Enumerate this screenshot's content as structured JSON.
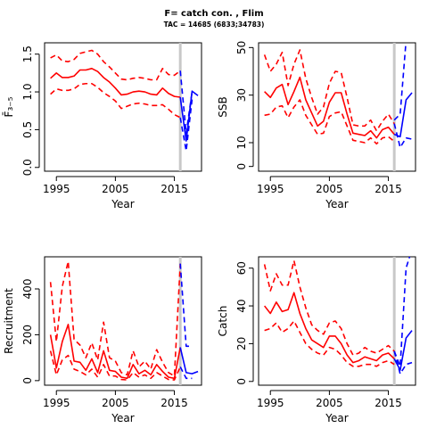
{
  "figure": {
    "title": "F= catch con. , Flim",
    "subtitle": "TAC = 14685 (6833;34783)"
  },
  "chart_data": [
    {
      "type": "line",
      "id": "f",
      "xlabel": "Year",
      "ylabel": "F̄₃₋₅",
      "xlim": [
        1993,
        2019.6
      ],
      "ylim": [
        -0.05,
        1.65
      ],
      "xticks": [
        1995,
        2005,
        2015
      ],
      "yticks": [
        0.0,
        0.5,
        1.0,
        1.5
      ],
      "ytick_labels": [
        "0.0",
        "0.5",
        "1.0",
        "1.5"
      ],
      "vline_x": 2016,
      "colors": {
        "history": "#ff0000",
        "forecast": "#0000ff",
        "vline": "#c8c8c8"
      },
      "history": {
        "x": [
          1994,
          1995,
          1996,
          1997,
          1998,
          1999,
          2000,
          2001,
          2002,
          2003,
          2004,
          2005,
          2006,
          2007,
          2008,
          2009,
          2010,
          2011,
          2012,
          2013,
          2014,
          2015,
          2016
        ],
        "median": [
          1.18,
          1.25,
          1.19,
          1.19,
          1.21,
          1.29,
          1.29,
          1.31,
          1.27,
          1.19,
          1.13,
          1.05,
          0.96,
          0.97,
          1.0,
          1.01,
          1.0,
          0.97,
          0.96,
          1.05,
          0.98,
          0.94,
          0.93
        ],
        "lower": [
          0.97,
          1.04,
          1.02,
          1.02,
          1.04,
          1.1,
          1.11,
          1.11,
          1.06,
          0.99,
          0.94,
          0.88,
          0.78,
          0.81,
          0.84,
          0.85,
          0.84,
          0.82,
          0.82,
          0.83,
          0.77,
          0.7,
          0.66
        ],
        "upper": [
          1.45,
          1.49,
          1.41,
          1.4,
          1.43,
          1.51,
          1.53,
          1.55,
          1.5,
          1.4,
          1.33,
          1.25,
          1.17,
          1.16,
          1.18,
          1.19,
          1.18,
          1.16,
          1.16,
          1.31,
          1.23,
          1.22,
          1.28
        ]
      },
      "forecast": {
        "x": [
          2016,
          2017,
          2018,
          2019
        ],
        "median": [
          0.93,
          0.35,
          1.01,
          0.95
        ],
        "lower": [
          0.66,
          0.22,
          0.9,
          null
        ],
        "upper": [
          1.28,
          0.45,
          1.0,
          null
        ]
      }
    },
    {
      "type": "line",
      "id": "ssb",
      "xlabel": "Year",
      "ylabel": "SSB",
      "xlim": [
        1993,
        2019.6
      ],
      "ylim": [
        -2,
        52
      ],
      "xticks": [
        1995,
        2005,
        2015
      ],
      "yticks": [
        0,
        10,
        30,
        50
      ],
      "ytick_labels": [
        "0",
        "10",
        "30",
        "50"
      ],
      "vline_x": 2016,
      "colors": {
        "history": "#ff0000",
        "forecast": "#0000ff",
        "vline": "#c8c8c8"
      },
      "history": {
        "x": [
          1994,
          1995,
          1996,
          1997,
          1998,
          1999,
          2000,
          2001,
          2002,
          2003,
          2004,
          2005,
          2006,
          2007,
          2008,
          2009,
          2010,
          2011,
          2012,
          2013,
          2014,
          2015,
          2016
        ],
        "median": [
          31.5,
          29.0,
          33.0,
          34.5,
          26.0,
          31.5,
          37.5,
          28.0,
          22.5,
          17.0,
          19.0,
          27.0,
          31.0,
          31.0,
          22.0,
          14.0,
          13.5,
          13.0,
          15.0,
          12.0,
          15.5,
          16.5,
          13.5
        ],
        "lower": [
          21.5,
          22.0,
          25.0,
          25.5,
          20.5,
          25.0,
          28.0,
          21.5,
          17.5,
          13.5,
          14.0,
          21.0,
          22.5,
          23.0,
          17.0,
          11.0,
          10.5,
          10.0,
          12.0,
          9.5,
          12.0,
          12.5,
          10.5
        ],
        "upper": [
          47.0,
          40.0,
          43.0,
          48.0,
          34.0,
          43.0,
          49.0,
          37.0,
          29.0,
          22.0,
          25.0,
          35.0,
          40.0,
          39.5,
          29.0,
          17.5,
          17.0,
          17.0,
          19.5,
          15.0,
          19.0,
          22.0,
          18.0
        ]
      },
      "forecast": {
        "x": [
          2016,
          2017,
          2018,
          2019
        ],
        "median": [
          13.5,
          12.5,
          28.0,
          31.0
        ],
        "lower": [
          18.0,
          8.0,
          12.0,
          11.5
        ],
        "upper": [
          19.5,
          22.0,
          53.0,
          null
        ]
      }
    },
    {
      "type": "line",
      "id": "recruitment",
      "xlabel": "Year",
      "ylabel": "Recruitment",
      "xlim": [
        1993,
        2019.6
      ],
      "ylim": [
        -20,
        540
      ],
      "xticks": [
        1995,
        2005,
        2015
      ],
      "yticks": [
        0,
        200,
        400
      ],
      "ytick_labels": [
        "0",
        "200",
        "400"
      ],
      "vline_x": 2016,
      "colors": {
        "history": "#ff0000",
        "forecast": "#0000ff",
        "vline": "#c8c8c8"
      },
      "history": {
        "x": [
          1994,
          1995,
          1996,
          1997,
          1998,
          1999,
          2000,
          2001,
          2002,
          2003,
          2004,
          2005,
          2006,
          2007,
          2008,
          2009,
          2010,
          2011,
          2012,
          2013,
          2014,
          2015,
          2016
        ],
        "median": [
          200,
          55,
          170,
          245,
          85,
          80,
          45,
          95,
          35,
          130,
          45,
          40,
          15,
          10,
          70,
          30,
          45,
          25,
          70,
          40,
          15,
          10,
          145
        ],
        "lower": [
          130,
          25,
          90,
          110,
          50,
          40,
          25,
          50,
          15,
          70,
          20,
          20,
          5,
          3,
          35,
          15,
          25,
          10,
          35,
          20,
          5,
          3,
          60
        ],
        "upper": [
          430,
          170,
          410,
          520,
          180,
          155,
          100,
          165,
          90,
          255,
          100,
          85,
          35,
          25,
          130,
          60,
          85,
          50,
          135,
          80,
          35,
          20,
          510
        ]
      },
      "forecast": {
        "x": [
          2016,
          2017,
          2018,
          2019
        ],
        "median": [
          145,
          35,
          30,
          40
        ],
        "lower": [
          60,
          10,
          10,
          null
        ],
        "upper": [
          510,
          150,
          150,
          null
        ]
      }
    },
    {
      "type": "line",
      "id": "catch",
      "xlabel": "Year",
      "ylabel": "Catch",
      "xlim": [
        1993,
        2019.6
      ],
      "ylim": [
        -2,
        66
      ],
      "xticks": [
        1995,
        2005,
        2015
      ],
      "yticks": [
        0,
        20,
        40,
        60
      ],
      "ytick_labels": [
        "0",
        "20",
        "40",
        "60"
      ],
      "vline_x": 2016,
      "colors": {
        "history": "#ff0000",
        "forecast": "#0000ff",
        "vline": "#c8c8c8"
      },
      "history": {
        "x": [
          1994,
          1995,
          1996,
          1997,
          1998,
          1999,
          2000,
          2001,
          2002,
          2003,
          2004,
          2005,
          2006,
          2007,
          2008,
          2009,
          2010,
          2011,
          2012,
          2013,
          2014,
          2015,
          2016
        ],
        "median": [
          40,
          36,
          42,
          37,
          38,
          47,
          36,
          28,
          22,
          20,
          18,
          24,
          24,
          20,
          14,
          10,
          11,
          13,
          12,
          11,
          14,
          15,
          12
        ],
        "lower": [
          27,
          28,
          31,
          26,
          28,
          32,
          26,
          20,
          17,
          15,
          14,
          18,
          17,
          14,
          10,
          8,
          8,
          9,
          9,
          8,
          10,
          11,
          9
        ],
        "upper": [
          62,
          48,
          57,
          51,
          51,
          64,
          50,
          39,
          30,
          27,
          25,
          31,
          32,
          28,
          20,
          14,
          15,
          18,
          16,
          15,
          17,
          19,
          16
        ]
      },
      "forecast": {
        "x": [
          2016,
          2017,
          2018,
          2019
        ],
        "median": [
          12,
          6,
          23,
          27
        ],
        "lower": [
          16,
          4,
          9,
          10
        ],
        "upper": [
          16,
          8,
          60,
          70
        ]
      }
    }
  ]
}
